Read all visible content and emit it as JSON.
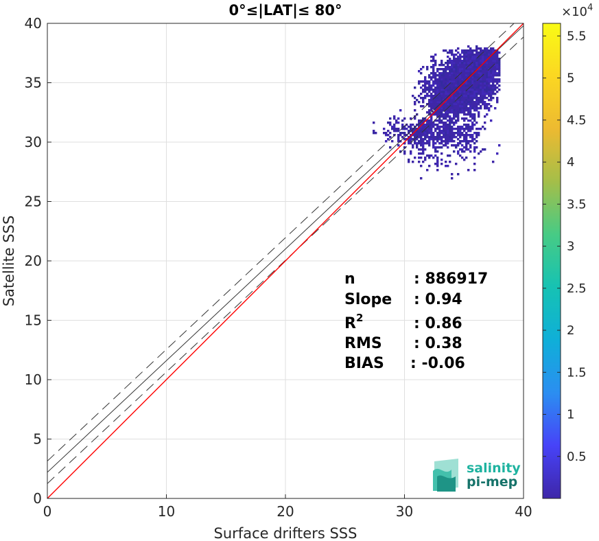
{
  "chart_data": {
    "type": "heatmap",
    "title": "0°≤|LAT|≤ 80°",
    "xlabel": "Surface drifters SSS",
    "ylabel": "Satellite SSS",
    "xlim": [
      0,
      40
    ],
    "ylim": [
      0,
      40
    ],
    "x_ticks": [
      "0",
      "10",
      "20",
      "30",
      "40"
    ],
    "y_ticks": [
      "0",
      "5",
      "10",
      "15",
      "20",
      "25",
      "30",
      "35",
      "40"
    ],
    "grid": true,
    "reference_lines": {
      "identity": {
        "slope": 1,
        "intercept": 0,
        "color": "#ff0000"
      },
      "regression": {
        "slope": 0.94,
        "intercept": 2.2,
        "color": "#333333"
      },
      "bounds_offset": 0.95
    },
    "density_clusters": [
      {
        "x": 35.0,
        "y": 35.0,
        "sx": 1.3,
        "sy": 1.1,
        "n": 2600
      },
      {
        "x": 36.3,
        "y": 36.4,
        "sx": 0.8,
        "sy": 0.7,
        "n": 1500
      },
      {
        "x": 33.7,
        "y": 33.5,
        "sx": 1.0,
        "sy": 0.8,
        "n": 900
      },
      {
        "x": 31.5,
        "y": 30.9,
        "sx": 1.4,
        "sy": 0.6,
        "n": 400
      },
      {
        "x": 34.3,
        "y": 30.8,
        "sx": 1.2,
        "sy": 0.8,
        "n": 300
      },
      {
        "x": 33.0,
        "y": 29.0,
        "sx": 1.8,
        "sy": 0.8,
        "n": 100
      }
    ],
    "colorbar": {
      "min": 0,
      "max": 56500,
      "exponent_label": "×10",
      "exponent_power": "4",
      "ticks": [
        0.5,
        1,
        1.5,
        2,
        2.5,
        3,
        3.5,
        4,
        4.5,
        5,
        5.5
      ],
      "tick_labels": [
        "0.5",
        "1",
        "1.5",
        "2",
        "2.5",
        "3",
        "3.5",
        "4",
        "4.5",
        "5",
        "5.5"
      ],
      "colormap": [
        "#3e26a8",
        "#4743f8",
        "#2b8ef1",
        "#0fafd8",
        "#16c2b3",
        "#47cb85",
        "#a4be49",
        "#edba31",
        "#fbd722",
        "#f9fb15"
      ]
    }
  },
  "stats": [
    {
      "label": "n",
      "sup": "",
      "value": ": 886917"
    },
    {
      "label": "Slope",
      "sup": "",
      "value": ": 0.94"
    },
    {
      "label": "R",
      "sup": "2",
      "value": ": 0.86"
    },
    {
      "label": "RMS",
      "sup": "",
      "value": ": 0.38"
    },
    {
      "label": "BIAS",
      "sup": "",
      "value": ": -0.06"
    }
  ],
  "logo": {
    "line1": "salinity",
    "line2": "pi-mep",
    "color1": "#1fb3a0",
    "color2": "#16736a"
  }
}
